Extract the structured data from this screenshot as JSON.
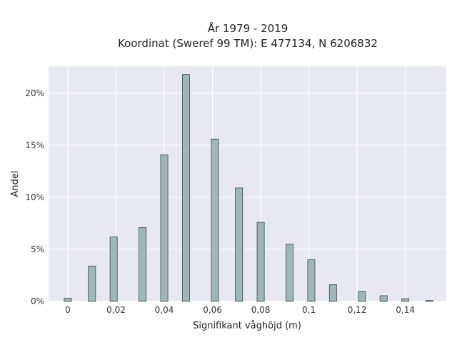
{
  "chart_data": {
    "type": "bar",
    "title_lines": [
      "År 1979 - 2019",
      "Koordinat (Sweref 99 TM): E 477134, N 6206832"
    ],
    "xlabel": "Signifikant våghöjd (m)",
    "ylabel": "Andel",
    "x_ticks": [
      {
        "value": 0,
        "label": "0"
      },
      {
        "value": 0.02,
        "label": "0,02"
      },
      {
        "value": 0.04,
        "label": "0,04"
      },
      {
        "value": 0.06,
        "label": "0,06"
      },
      {
        "value": 0.08,
        "label": "0,08"
      },
      {
        "value": 0.1,
        "label": "0,1"
      },
      {
        "value": 0.12,
        "label": "0,12"
      },
      {
        "value": 0.14,
        "label": "0,14"
      }
    ],
    "y_ticks": [
      {
        "value": 0,
        "label": "0%"
      },
      {
        "value": 5,
        "label": "5%"
      },
      {
        "value": 10,
        "label": "10%"
      },
      {
        "value": 15,
        "label": "15%"
      },
      {
        "value": 20,
        "label": "20%"
      }
    ],
    "xlim": [
      -0.008,
      0.157
    ],
    "ylim": [
      0,
      22.6
    ],
    "x": [
      0,
      0.01,
      0.019,
      0.031,
      0.04,
      0.049,
      0.061,
      0.071,
      0.08,
      0.092,
      0.101,
      0.11,
      0.122,
      0.131,
      0.14,
      0.15
    ],
    "values": [
      0.3,
      3.4,
      6.2,
      7.1,
      14.1,
      21.8,
      15.6,
      10.9,
      7.6,
      5.5,
      4.0,
      1.6,
      0.95,
      0.55,
      0.25,
      0.1
    ],
    "bar_width": 0.003,
    "grid": true,
    "colors": {
      "plot_bg": "#e8e8f0",
      "bar_fill": "#9fb6b6",
      "bar_stroke": "#3a4a48",
      "grid": "#ffffff"
    }
  }
}
